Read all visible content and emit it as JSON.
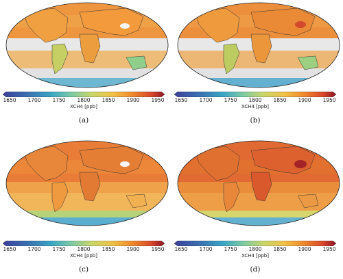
{
  "colorbar": {
    "label": "XCH4 [ppb]",
    "ticks": [
      "1650",
      "1700",
      "1750",
      "1800",
      "1850",
      "1900",
      "1950"
    ],
    "min": 1650,
    "max": 1950,
    "colors": [
      "#3b3f98",
      "#3a6fb0",
      "#3aa5c5",
      "#7ac9a6",
      "#c9d76a",
      "#f1c147",
      "#ef8a2b",
      "#d8452a",
      "#8e1322"
    ]
  },
  "panels": [
    {
      "caption": "(a)"
    },
    {
      "caption": "(b)"
    },
    {
      "caption": "(c)"
    },
    {
      "caption": "(d)"
    }
  ]
}
